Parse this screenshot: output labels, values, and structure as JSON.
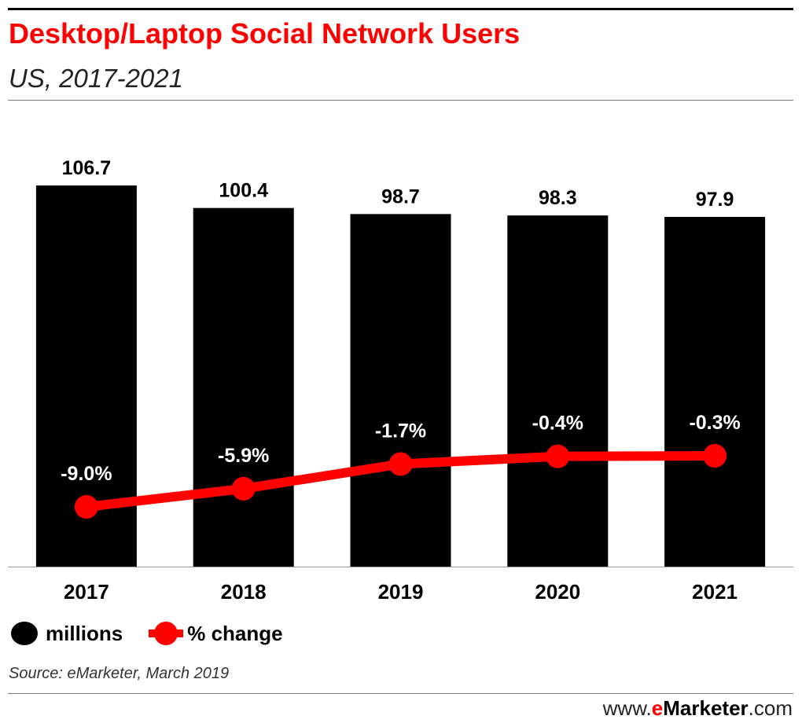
{
  "header": {
    "title": "Desktop/Laptop Social Network Users",
    "subtitle": "US, 2017-2021"
  },
  "legend": {
    "bars_label": "millions",
    "line_label": "% change"
  },
  "source": "Source: eMarketer, March 2019",
  "footer": {
    "prefix": "www.",
    "brand_e": "e",
    "brand_rest": "Marketer",
    "suffix": ".com"
  },
  "colors": {
    "bars": "#000000",
    "line": "#ff0000",
    "title": "#ff0000"
  },
  "chart_data": {
    "type": "bar",
    "title": "Desktop/Laptop Social Network Users",
    "subtitle": "US, 2017-2021",
    "categories": [
      "2017",
      "2018",
      "2019",
      "2020",
      "2021"
    ],
    "series": [
      {
        "name": "millions",
        "type": "bar",
        "values": [
          106.7,
          100.4,
          98.7,
          98.3,
          97.9
        ],
        "labels": [
          "106.7",
          "100.4",
          "98.7",
          "98.3",
          "97.9"
        ]
      },
      {
        "name": "% change",
        "type": "line",
        "values": [
          -9.0,
          -5.9,
          -1.7,
          -0.4,
          -0.3
        ],
        "labels": [
          "-9.0%",
          "-5.9%",
          "-1.7%",
          "-0.4%",
          "-0.3%"
        ]
      }
    ],
    "ylim_bars": [
      0,
      106.7
    ],
    "ylim_line": [
      -13.5,
      0
    ],
    "xlabel": "",
    "ylabel": "",
    "grid": false,
    "legend_position": "bottom-left"
  }
}
